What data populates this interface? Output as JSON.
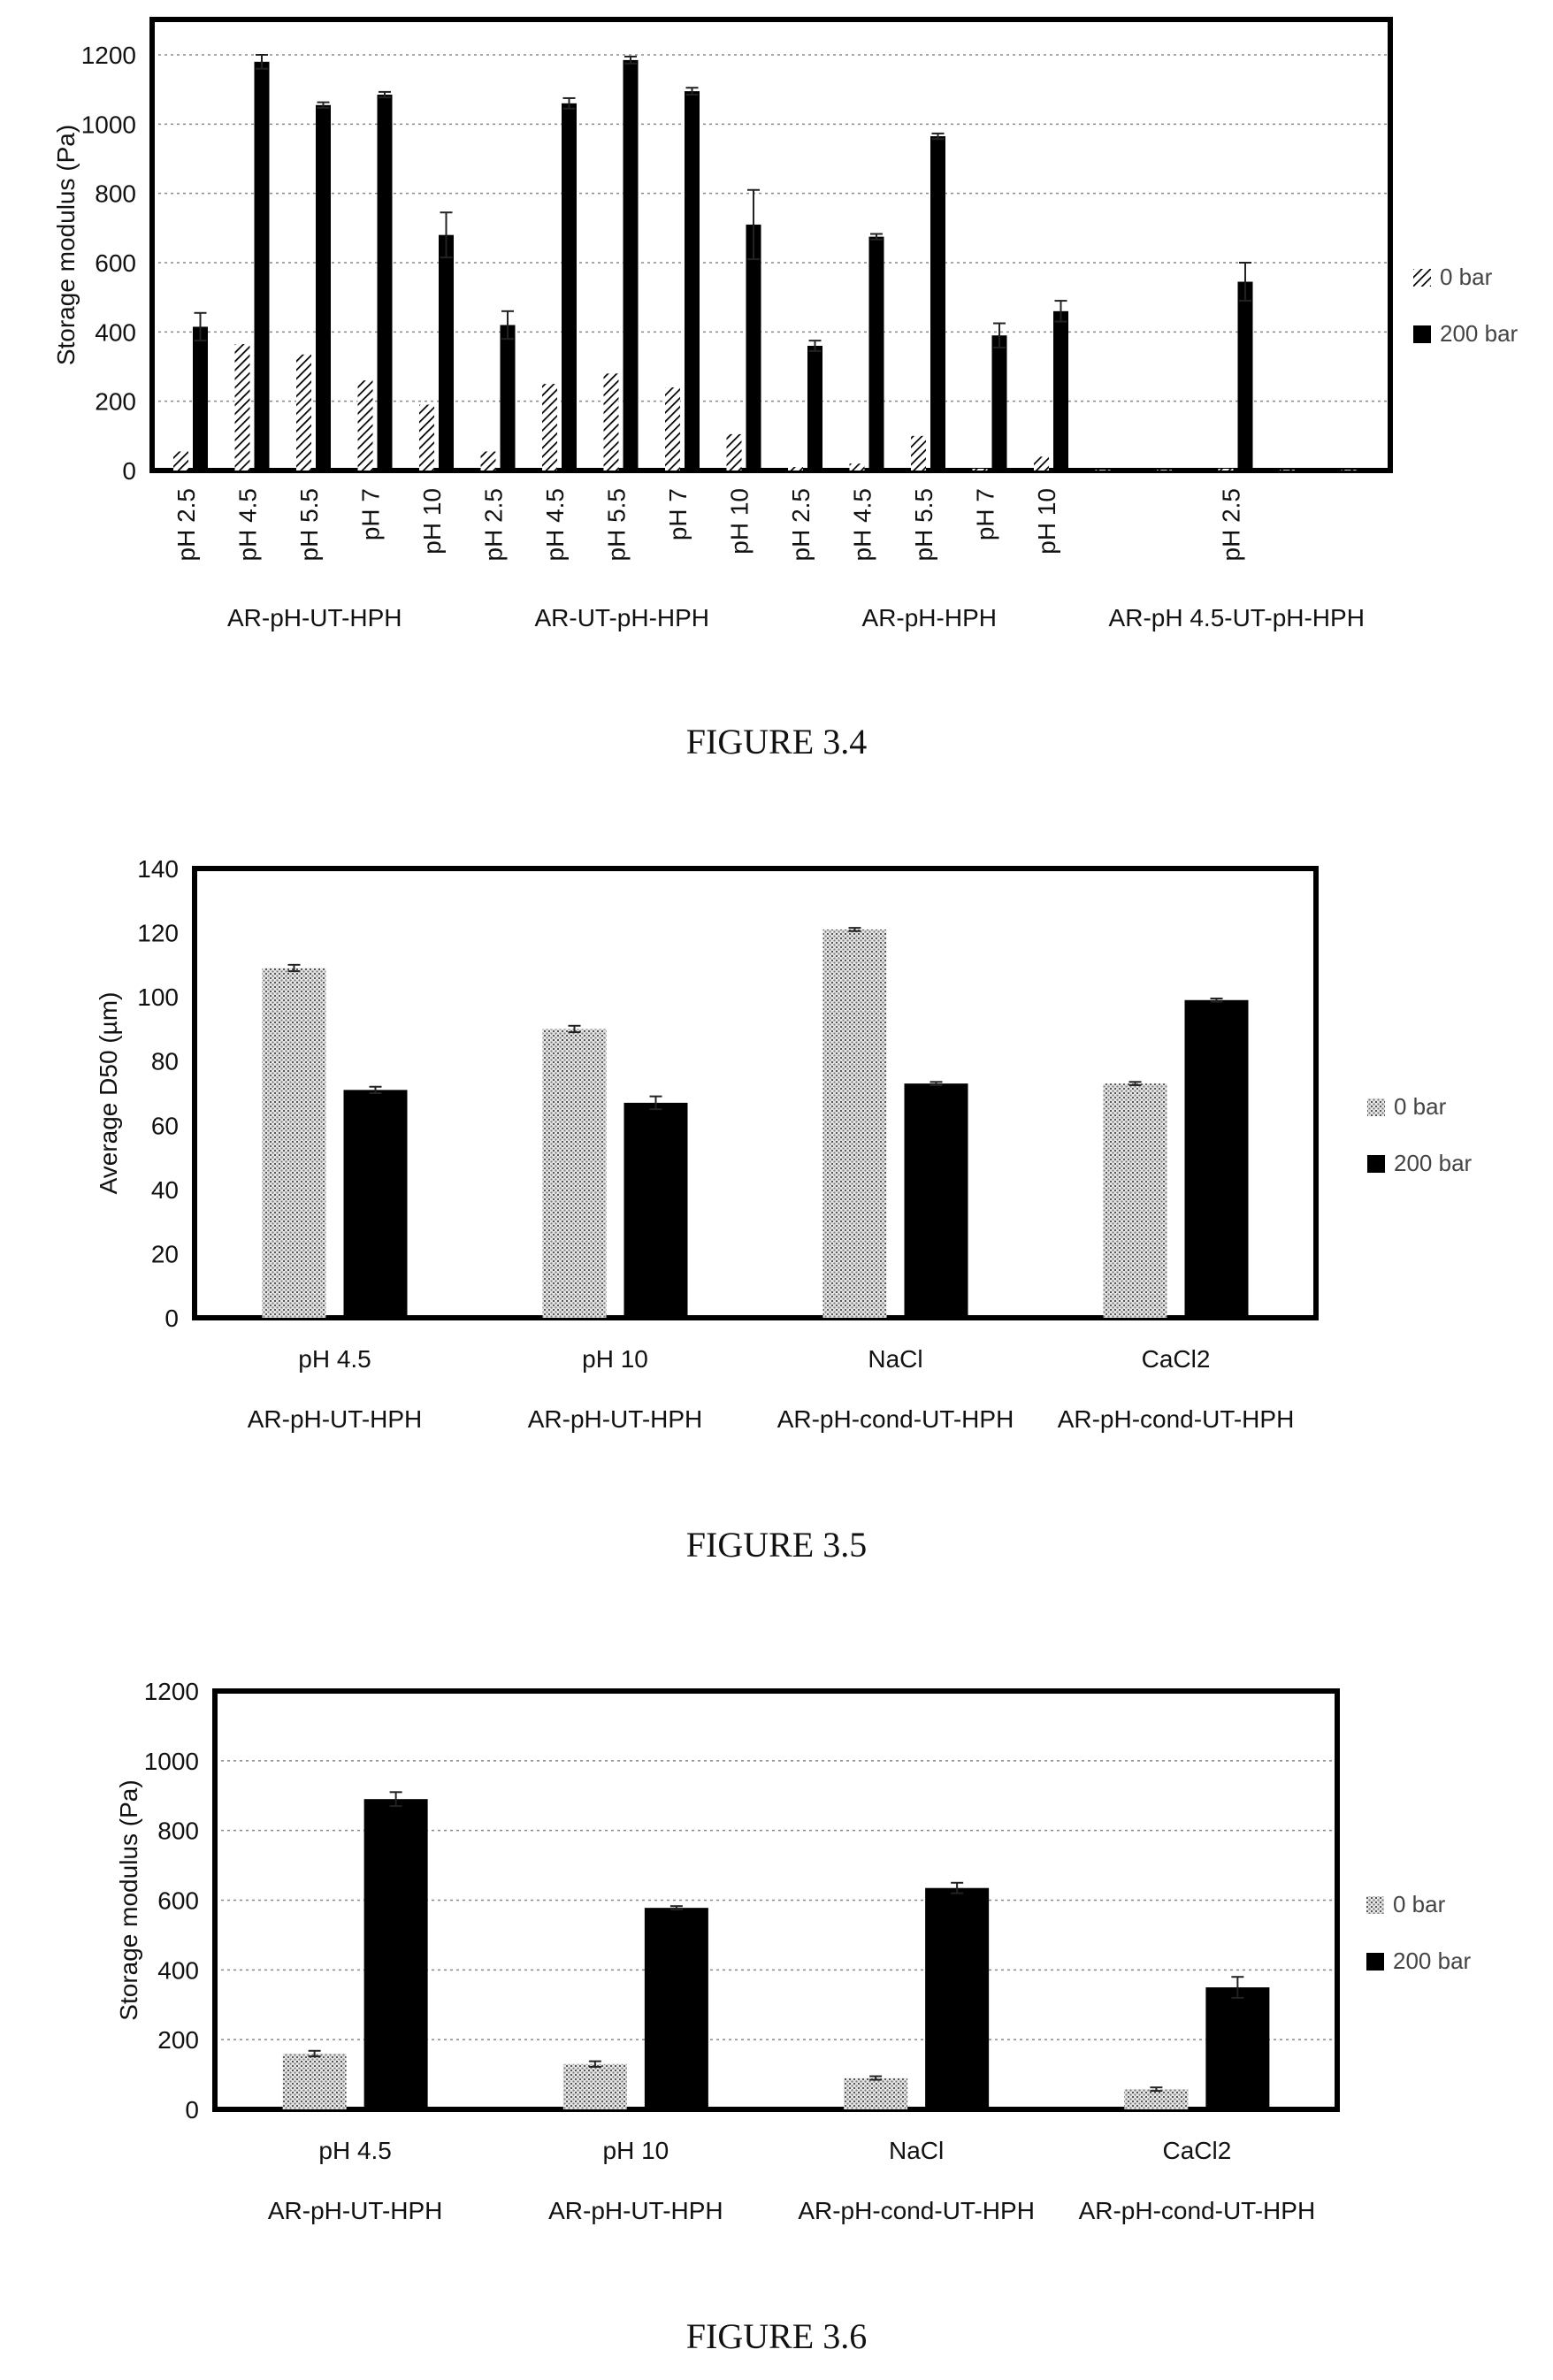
{
  "chart_data": [
    {
      "type": "bar",
      "ylabel": "Storage modulus (Pa)",
      "ylim": [
        0,
        1200
      ],
      "yticks": [
        0,
        200,
        400,
        600,
        800,
        1000,
        1200
      ],
      "grid": true,
      "legend_position": "right",
      "series": [
        {
          "name": "0 bar",
          "pattern": "hatch-diagonal"
        },
        {
          "name": "200 bar",
          "color": "#000000"
        }
      ],
      "groups": [
        {
          "label": "AR-pH-UT-HPH",
          "items": [
            {
              "label": "pH 2.5",
              "v0": 55,
              "v200": 415,
              "e200": 40
            },
            {
              "label": "pH 4.5",
              "v0": 365,
              "v200": 1180,
              "e200": 20
            },
            {
              "label": "pH 5.5",
              "v0": 335,
              "v200": 1055,
              "e200": 8
            },
            {
              "label": "pH 7",
              "v0": 260,
              "v200": 1085,
              "e200": 8
            },
            {
              "label": "pH 10",
              "v0": 190,
              "v200": 680,
              "e200": 65
            }
          ]
        },
        {
          "label": "AR-UT-pH-HPH",
          "items": [
            {
              "label": "pH 2.5",
              "v0": 55,
              "v200": 420,
              "e200": 40
            },
            {
              "label": "pH 4.5",
              "v0": 250,
              "v200": 1060,
              "e200": 15
            },
            {
              "label": "pH 5.5",
              "v0": 280,
              "v200": 1185,
              "e200": 10
            },
            {
              "label": "pH 7",
              "v0": 240,
              "v200": 1095,
              "e200": 10
            },
            {
              "label": "pH 10",
              "v0": 105,
              "v200": 710,
              "e200": 100
            }
          ]
        },
        {
          "label": "AR-pH-HPH",
          "items": [
            {
              "label": "pH 2.5",
              "v0": 10,
              "v200": 360,
              "e200": 15
            },
            {
              "label": "pH 4.5",
              "v0": 20,
              "v200": 675,
              "e200": 8
            },
            {
              "label": "pH 5.5",
              "v0": 100,
              "v200": 965,
              "e200": 8
            },
            {
              "label": "pH 7",
              "v0": 5,
              "v200": 390,
              "e200": 35
            },
            {
              "label": "pH 10",
              "v0": 40,
              "v200": 460,
              "e200": 30
            }
          ]
        },
        {
          "label": "AR-pH 4.5-UT-pH-HPH",
          "items": [
            {
              "label": "",
              "v0": 2,
              "v200": 0,
              "e200": 0
            },
            {
              "label": "",
              "v0": 2,
              "v200": 0,
              "e200": 0
            },
            {
              "label": "pH 2.5",
              "v0": 5,
              "v200": 545,
              "e200": 55
            },
            {
              "label": "",
              "v0": 2,
              "v200": 0,
              "e200": 0
            },
            {
              "label": "",
              "v0": 2,
              "v200": 0,
              "e200": 0
            }
          ]
        }
      ],
      "caption": "FIGURE 3.4"
    },
    {
      "type": "bar",
      "ylabel": "Average D50 (µm)",
      "ylim": [
        0,
        140
      ],
      "yticks": [
        0,
        20,
        40,
        60,
        80,
        100,
        120,
        140
      ],
      "grid": false,
      "legend_position": "right",
      "series": [
        {
          "name": "0 bar",
          "pattern": "dots"
        },
        {
          "name": "200 bar",
          "color": "#000000"
        }
      ],
      "categories": [
        {
          "label": "pH 4.5",
          "sub": "AR-pH-UT-HPH",
          "v0": 109,
          "e0": 1,
          "v200": 71,
          "e200": 1
        },
        {
          "label": "pH 10",
          "sub": "AR-pH-UT-HPH",
          "v0": 90,
          "e0": 1,
          "v200": 67,
          "e200": 2
        },
        {
          "label": "NaCl",
          "sub": "AR-pH-cond-UT-HPH",
          "v0": 121,
          "e0": 0.5,
          "v200": 73,
          "e200": 0.5
        },
        {
          "label": "CaCl2",
          "sub": "AR-pH-cond-UT-HPH",
          "v0": 73,
          "e0": 0.5,
          "v200": 99,
          "e200": 0.5
        }
      ],
      "caption": "FIGURE 3.5"
    },
    {
      "type": "bar",
      "ylabel": "Storage modulus (Pa)",
      "ylim": [
        0,
        1200
      ],
      "yticks": [
        0,
        200,
        400,
        600,
        800,
        1000,
        1200
      ],
      "grid": true,
      "legend_position": "right",
      "series": [
        {
          "name": "0 bar",
          "pattern": "dots"
        },
        {
          "name": "200 bar",
          "color": "#000000"
        }
      ],
      "categories": [
        {
          "label": "pH 4.5",
          "sub": "AR-pH-UT-HPH",
          "v0": 160,
          "e0": 8,
          "v200": 890,
          "e200": 20
        },
        {
          "label": "pH 10",
          "sub": "AR-pH-UT-HPH",
          "v0": 130,
          "e0": 8,
          "v200": 578,
          "e200": 5
        },
        {
          "label": "NaCl",
          "sub": "AR-pH-cond-UT-HPH",
          "v0": 90,
          "e0": 5,
          "v200": 635,
          "e200": 15
        },
        {
          "label": "CaCl2",
          "sub": "AR-pH-cond-UT-HPH",
          "v0": 58,
          "e0": 5,
          "v200": 350,
          "e200": 30
        }
      ],
      "caption": "FIGURE 3.6"
    }
  ]
}
